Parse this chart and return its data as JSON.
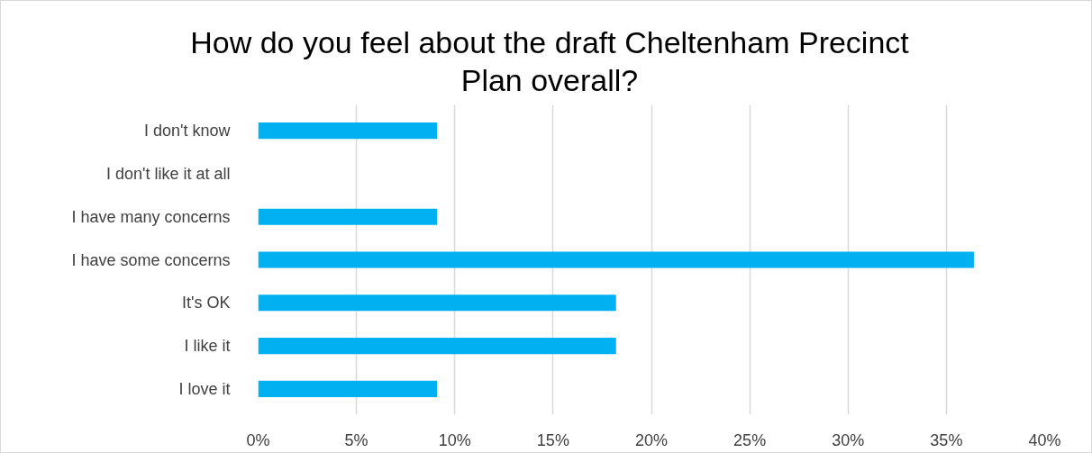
{
  "chart_data": {
    "type": "bar",
    "orientation": "horizontal",
    "title": "How do you feel about the draft Cheltenham Precinct Plan overall?",
    "categories": [
      "I don't know",
      "I don't like it at all",
      "I have many concerns",
      "I have some concerns",
      "It's OK",
      "I like it",
      "I love it"
    ],
    "values": [
      9.1,
      0,
      9.1,
      36.4,
      18.2,
      18.2,
      9.1
    ],
    "color": "#00b0f0",
    "xlim": [
      0,
      40
    ],
    "xticks": [
      {
        "value": 0,
        "label": "0%"
      },
      {
        "value": 5,
        "label": "5%"
      },
      {
        "value": 10,
        "label": "10%"
      },
      {
        "value": 15,
        "label": "15%"
      },
      {
        "value": 20,
        "label": "20%"
      },
      {
        "value": 25,
        "label": "25%"
      },
      {
        "value": 30,
        "label": "30%"
      },
      {
        "value": 35,
        "label": "35%"
      },
      {
        "value": 40,
        "label": "40%"
      }
    ],
    "grid": "x"
  }
}
